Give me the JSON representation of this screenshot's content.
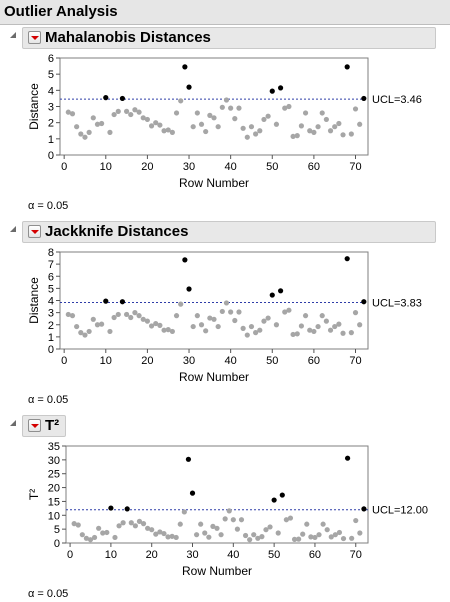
{
  "outline_title": "Outlier Analysis",
  "colors": {
    "point_normal": "#a6a6a6",
    "point_outlier": "#000000",
    "ucl_line": "#2f3da8",
    "header_bg": "#e6e6e6",
    "menu_triangle": "#d40000"
  },
  "icons": [
    "disclosure-triangle-icon",
    "red-triangle-menu-icon"
  ],
  "sections": [
    {
      "title": "Mahalanobis Distances",
      "alpha_text": "α = 0.05",
      "chart_data": {
        "type": "scatter",
        "xlabel": "Row Number",
        "ylabel": "Distance",
        "xlim": [
          -1,
          73
        ],
        "ylim": [
          0,
          6
        ],
        "x_ticks": [
          0,
          10,
          20,
          30,
          40,
          50,
          60,
          70
        ],
        "y_ticks": [
          0,
          1,
          2,
          3,
          4,
          5,
          6
        ],
        "ucl": 3.46,
        "ucl_label": "UCL=3.46",
        "y": [
          2.65,
          2.55,
          1.75,
          1.3,
          1.1,
          1.4,
          2.3,
          1.9,
          1.95,
          3.55,
          1.4,
          2.5,
          2.7,
          3.5,
          2.7,
          2.5,
          2.8,
          2.65,
          2.3,
          2.2,
          1.8,
          2,
          1.85,
          1.5,
          1.55,
          1.4,
          2.6,
          3.35,
          5.45,
          4.2,
          1.75,
          2.6,
          1.9,
          1.45,
          2.45,
          2.3,
          1.75,
          2.95,
          3.4,
          2.9,
          2.25,
          2.9,
          1.65,
          1.1,
          1.75,
          1.3,
          1.5,
          2.2,
          2.4,
          3.95,
          1.9,
          4.15,
          2.9,
          3.0,
          1.15,
          1.2,
          1.8,
          2.6,
          1.5,
          1.4,
          1.75,
          2.6,
          2.2,
          1.5,
          1.75,
          1.95,
          1.25,
          5.45,
          1.3,
          2.85,
          1.9,
          3.5
        ]
      }
    },
    {
      "title": "Jackknife Distances",
      "alpha_text": "α = 0.05",
      "chart_data": {
        "type": "scatter",
        "xlabel": "Row Number",
        "ylabel": "Distance",
        "xlim": [
          -1,
          73
        ],
        "ylim": [
          0,
          8
        ],
        "x_ticks": [
          0,
          10,
          20,
          30,
          40,
          50,
          60,
          70
        ],
        "y_ticks": [
          0,
          1,
          2,
          3,
          4,
          5,
          6,
          7,
          8
        ],
        "ucl": 3.83,
        "ucl_label": "UCL=3.83",
        "y": [
          2.85,
          2.75,
          1.85,
          1.35,
          1.15,
          1.45,
          2.45,
          2,
          2.05,
          3.95,
          1.45,
          2.6,
          2.85,
          3.9,
          2.85,
          2.6,
          3.0,
          2.75,
          2.45,
          2.3,
          1.9,
          2.1,
          1.95,
          1.55,
          1.6,
          1.45,
          2.75,
          3.7,
          7.35,
          4.95,
          1.85,
          2.75,
          2,
          1.5,
          2.55,
          2.45,
          1.85,
          3.1,
          3.8,
          3.05,
          2.35,
          3.05,
          1.7,
          1.15,
          1.85,
          1.35,
          1.55,
          2.3,
          2.55,
          4.45,
          2,
          4.8,
          3.05,
          3.2,
          1.2,
          1.25,
          1.9,
          2.75,
          1.55,
          1.45,
          1.85,
          2.75,
          2.3,
          1.55,
          1.85,
          2.05,
          1.3,
          7.45,
          1.35,
          3.0,
          2.0,
          3.9
        ]
      }
    },
    {
      "title": "T²",
      "alpha_text": "α = 0.05",
      "chart_data": {
        "type": "scatter",
        "xlabel": "Row Number",
        "ylabel": "T²",
        "xlim": [
          -1,
          73
        ],
        "ylim": [
          0,
          35
        ],
        "x_ticks": [
          0,
          10,
          20,
          30,
          40,
          50,
          60,
          70
        ],
        "y_ticks": [
          0,
          5,
          10,
          15,
          20,
          25,
          30,
          35
        ],
        "ucl": 12.0,
        "ucl_label": "UCL=12.00",
        "y": [
          7,
          6.5,
          3,
          1.7,
          1.2,
          2,
          5.3,
          3.6,
          3.8,
          12.6,
          2,
          6.2,
          7.3,
          12.3,
          7.3,
          6.2,
          7.8,
          7,
          5.3,
          4.8,
          3.2,
          4,
          3.4,
          2.2,
          2.4,
          2,
          6.8,
          11.2,
          30.2,
          18,
          3,
          6.8,
          3.6,
          2.1,
          6,
          5.3,
          3,
          8.7,
          11.6,
          8.4,
          5,
          8.4,
          2.7,
          1.2,
          3,
          1.7,
          2.3,
          4.8,
          5.8,
          15.5,
          3.6,
          17.3,
          8.4,
          9,
          1.3,
          1.4,
          3.2,
          6.8,
          2.2,
          2,
          3,
          6.8,
          4.8,
          2.2,
          3,
          3.8,
          1.6,
          30.6,
          1.7,
          8.1,
          3.6,
          12.3
        ]
      }
    }
  ]
}
